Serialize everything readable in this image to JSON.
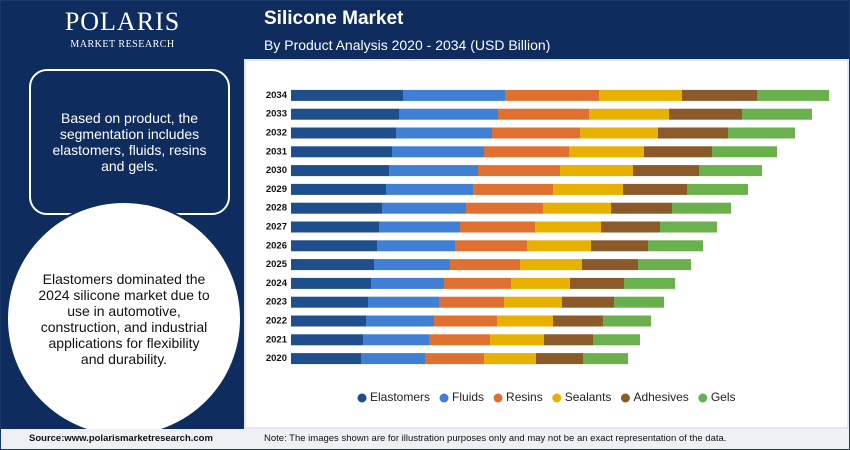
{
  "sidebar": {
    "logo_name": "POLARIS",
    "logo_tagline": "MARKET RESEARCH",
    "box_text": "Based on product, the segmentation includes elastomers, fluids, resins and gels.",
    "circle_text": "Elastomers dominated the 2024 silicone market due to use in automotive, construction, and industrial applications for flexibility and durability."
  },
  "footer": {
    "source": "Source:www.polarismarketresearch.com",
    "note": "Note: The images shown are for illustration purposes only and may not be an exact representation of the data."
  },
  "chart_data": {
    "type": "stacked-bar-horizontal",
    "title": "Silicone Market",
    "subtitle": "By Product Analysis 2020 - 2034 (USD Billion)",
    "categories": [
      "2034",
      "2033",
      "2032",
      "2031",
      "2030",
      "2029",
      "2028",
      "2027",
      "2026",
      "2025",
      "2024",
      "2023",
      "2022",
      "2021",
      "2020"
    ],
    "xlim": [
      0,
      540
    ],
    "series": [
      {
        "name": "Elastomers",
        "color": "#1f4e8c",
        "values": [
          112,
          108,
          105,
          101,
          98,
          95,
          91,
          88,
          86,
          83,
          80,
          77,
          75,
          72,
          70
        ]
      },
      {
        "name": "Fluids",
        "color": "#3f7fd4",
        "values": [
          102,
          99,
          96,
          92,
          89,
          87,
          84,
          81,
          78,
          76,
          73,
          71,
          68,
          66,
          64
        ]
      },
      {
        "name": "Resins",
        "color": "#e07030",
        "values": [
          94,
          91,
          88,
          85,
          82,
          80,
          77,
          75,
          72,
          70,
          67,
          65,
          63,
          61,
          59
        ]
      },
      {
        "name": "Sealants",
        "color": "#e8b000",
        "values": [
          83,
          80,
          78,
          75,
          73,
          70,
          68,
          66,
          64,
          62,
          59,
          58,
          56,
          54,
          52
        ]
      },
      {
        "name": "Adhesives",
        "color": "#8a5a2a",
        "values": [
          75,
          73,
          70,
          68,
          66,
          64,
          61,
          59,
          57,
          56,
          54,
          52,
          50,
          49,
          47
        ]
      },
      {
        "name": "Gels",
        "color": "#6ab04c",
        "values": [
          72,
          70,
          67,
          65,
          63,
          61,
          59,
          57,
          55,
          53,
          51,
          50,
          48,
          47,
          45
        ]
      }
    ]
  }
}
